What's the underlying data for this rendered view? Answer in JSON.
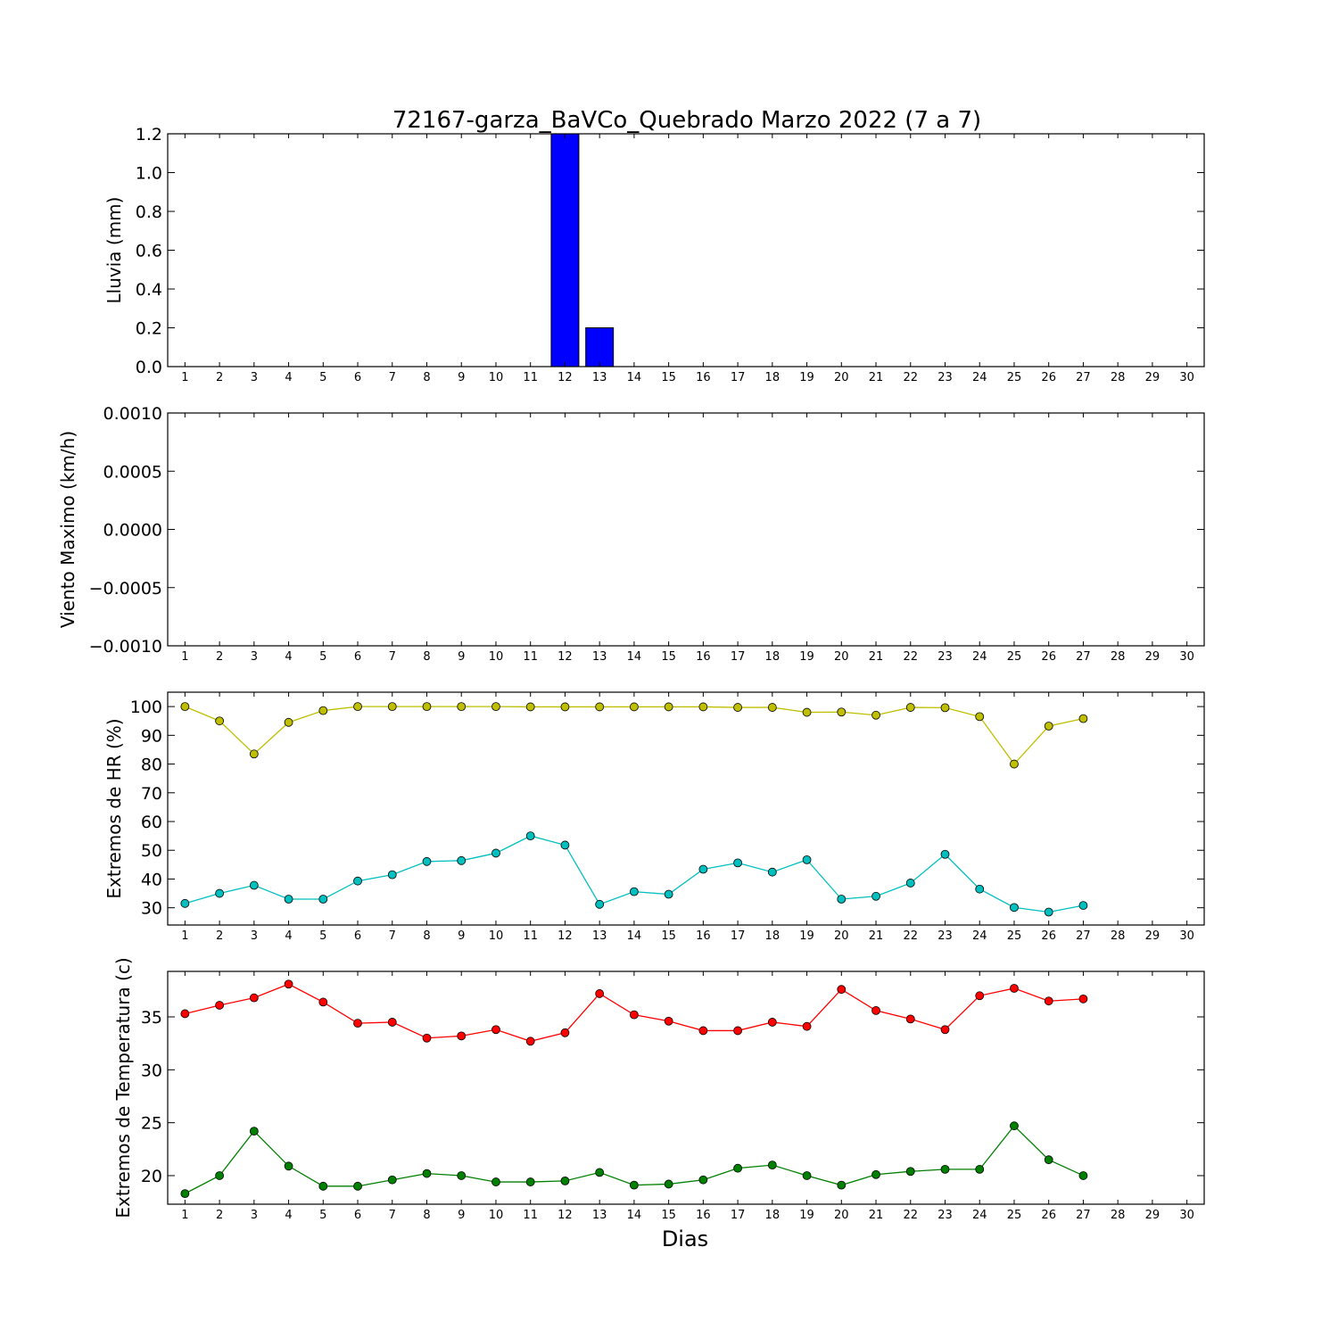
{
  "figure": {
    "title": "72167-garza_BaVCo_Quebrado Marzo 2022  (7 a 7)",
    "xlabel": "Dias"
  },
  "chart_data": [
    {
      "type": "bar",
      "ylabel": "Lluvia (mm)",
      "xlim": [
        0.5,
        30.5
      ],
      "ylim": [
        0,
        1.2
      ],
      "x_ticks": [
        1,
        2,
        3,
        4,
        5,
        6,
        7,
        8,
        9,
        10,
        11,
        12,
        13,
        14,
        15,
        16,
        17,
        18,
        19,
        20,
        21,
        22,
        23,
        24,
        25,
        26,
        27,
        28,
        29,
        30
      ],
      "y_ticks": [
        "0.0",
        "0.2",
        "0.4",
        "0.6",
        "0.8",
        "1.0",
        "1.2"
      ],
      "series": [
        {
          "color": "#0000ff",
          "x": [
            1,
            2,
            3,
            4,
            5,
            6,
            7,
            8,
            9,
            10,
            11,
            12,
            13,
            14,
            15,
            16,
            17,
            18,
            19,
            20,
            21,
            22,
            23,
            24,
            25,
            26,
            27
          ],
          "values": [
            0,
            0,
            0,
            0,
            0,
            0,
            0,
            0,
            0,
            0,
            0,
            1.2,
            0.2,
            0,
            0,
            0,
            0,
            0,
            0,
            0,
            0,
            0,
            0,
            0,
            0,
            0,
            0
          ]
        }
      ]
    },
    {
      "type": "line",
      "ylabel": "Viento Maximo (km/h)",
      "xlim": [
        0.5,
        30.5
      ],
      "ylim": [
        -0.001,
        0.001
      ],
      "x_ticks": [
        1,
        2,
        3,
        4,
        5,
        6,
        7,
        8,
        9,
        10,
        11,
        12,
        13,
        14,
        15,
        16,
        17,
        18,
        19,
        20,
        21,
        22,
        23,
        24,
        25,
        26,
        27,
        28,
        29,
        30
      ],
      "y_ticks": [
        "−0.0010",
        "−0.0005",
        "0.0000",
        "0.0005",
        "0.0010"
      ],
      "series": []
    },
    {
      "type": "line",
      "ylabel": "Extremos de HR (%)",
      "xlim": [
        0.5,
        30.5
      ],
      "ylim": [
        24,
        105
      ],
      "x_ticks": [
        1,
        2,
        3,
        4,
        5,
        6,
        7,
        8,
        9,
        10,
        11,
        12,
        13,
        14,
        15,
        16,
        17,
        18,
        19,
        20,
        21,
        22,
        23,
        24,
        25,
        26,
        27,
        28,
        29,
        30
      ],
      "y_ticks": [
        "30",
        "40",
        "50",
        "60",
        "70",
        "80",
        "90",
        "100"
      ],
      "series": [
        {
          "color": "#bfbf00",
          "x": [
            1,
            2,
            3,
            4,
            5,
            6,
            7,
            8,
            9,
            10,
            11,
            12,
            13,
            14,
            15,
            16,
            17,
            18,
            19,
            20,
            21,
            22,
            23,
            24,
            25,
            26,
            27
          ],
          "values": [
            100,
            95,
            83.5,
            94.5,
            98.6,
            100,
            100,
            100,
            100,
            100,
            99.9,
            99.9,
            99.9,
            99.9,
            99.9,
            99.9,
            99.7,
            99.7,
            98,
            98.1,
            97,
            99.7,
            99.6,
            96.5,
            80,
            93.2,
            95.8
          ]
        },
        {
          "color": "#00bfbf",
          "x": [
            1,
            2,
            3,
            4,
            5,
            6,
            7,
            8,
            9,
            10,
            11,
            12,
            13,
            14,
            15,
            16,
            17,
            18,
            19,
            20,
            21,
            22,
            23,
            24,
            25,
            26,
            27
          ],
          "values": [
            31.5,
            35,
            37.8,
            33,
            33,
            39.3,
            41.5,
            46.1,
            46.4,
            49,
            55,
            51.8,
            31.2,
            35.6,
            34.7,
            43.4,
            45.6,
            42.4,
            46.7,
            33,
            34,
            38.6,
            48.6,
            36.5,
            30.1,
            28.5,
            30.8
          ]
        }
      ]
    },
    {
      "type": "line",
      "ylabel": "Extremos de Temperatura (c)",
      "xlim": [
        0.5,
        30.5
      ],
      "ylim": [
        17.3,
        39.3
      ],
      "x_ticks": [
        1,
        2,
        3,
        4,
        5,
        6,
        7,
        8,
        9,
        10,
        11,
        12,
        13,
        14,
        15,
        16,
        17,
        18,
        19,
        20,
        21,
        22,
        23,
        24,
        25,
        26,
        27,
        28,
        29,
        30
      ],
      "y_ticks": [
        "20",
        "25",
        "30",
        "35"
      ],
      "series": [
        {
          "color": "#ff0000",
          "x": [
            1,
            2,
            3,
            4,
            5,
            6,
            7,
            8,
            9,
            10,
            11,
            12,
            13,
            14,
            15,
            16,
            17,
            18,
            19,
            20,
            21,
            22,
            23,
            24,
            25,
            26,
            27
          ],
          "values": [
            35.3,
            36.1,
            36.8,
            38.1,
            36.4,
            34.4,
            34.5,
            33,
            33.2,
            33.8,
            32.7,
            33.5,
            37.2,
            35.2,
            34.6,
            33.7,
            33.7,
            34.5,
            34.1,
            37.6,
            35.6,
            34.8,
            33.8,
            37,
            37.7,
            36.5,
            36.7
          ]
        },
        {
          "color": "#008000",
          "x": [
            1,
            2,
            3,
            4,
            5,
            6,
            7,
            8,
            9,
            10,
            11,
            12,
            13,
            14,
            15,
            16,
            17,
            18,
            19,
            20,
            21,
            22,
            23,
            24,
            25,
            26,
            27
          ],
          "values": [
            18.3,
            20,
            24.2,
            20.9,
            19,
            19,
            19.6,
            20.2,
            20,
            19.4,
            19.4,
            19.5,
            20.3,
            19.1,
            19.2,
            19.6,
            20.7,
            21,
            20,
            19.1,
            20.1,
            20.4,
            20.6,
            20.6,
            24.7,
            21.5,
            20
          ]
        }
      ]
    }
  ]
}
